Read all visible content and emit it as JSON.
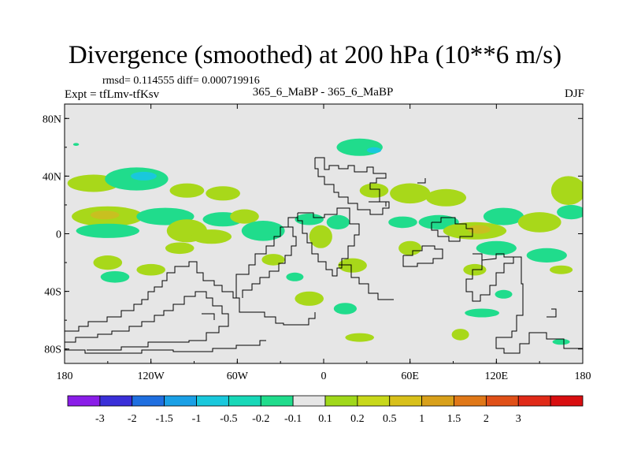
{
  "chart_data": {
    "type": "heatmap",
    "title": "Divergence (smoothed) at 200 hPa (10**6 m/s)",
    "stats": "rmsd= 0.114555 diff= 0.000719916",
    "left_label": "Expt = tfLmv-tfKsv",
    "center_label": "365_6_MaBP - 365_6_MaBP",
    "right_label": "DJF",
    "xlim": [
      -180,
      180
    ],
    "ylim": [
      -90,
      90
    ],
    "x_ticks": [
      {
        "value": -180,
        "label": "180"
      },
      {
        "value": -120,
        "label": "120W"
      },
      {
        "value": -60,
        "label": "60W"
      },
      {
        "value": 0,
        "label": "0"
      },
      {
        "value": 60,
        "label": "60E"
      },
      {
        "value": 120,
        "label": "120E"
      },
      {
        "value": 180,
        "label": "180"
      }
    ],
    "y_ticks": [
      {
        "value": 80,
        "label": "80N"
      },
      {
        "value": 40,
        "label": "40N"
      },
      {
        "value": 0,
        "label": "0"
      },
      {
        "value": -40,
        "label": "40S"
      },
      {
        "value": -80,
        "label": "80S"
      }
    ],
    "colorbar": {
      "colors": [
        "#8a1de8",
        "#3a2fd8",
        "#1f6fe0",
        "#1aa0e6",
        "#19c8dc",
        "#18d8b8",
        "#20dc8c",
        "#e6e6e6",
        "#a0d81a",
        "#c8d81a",
        "#d8c01a",
        "#d8a01a",
        "#e07818",
        "#e05018",
        "#e02a18",
        "#d80e10"
      ],
      "labels": [
        "-3",
        "-2",
        "-1.5",
        "-1",
        "-0.5",
        "-0.2",
        "-0.1",
        "0.1",
        "0.2",
        "0.5",
        "1",
        "1.5",
        "2",
        "3"
      ]
    },
    "blobs": [
      {
        "lon": -160,
        "lat": 35,
        "rx": 18,
        "ry": 6,
        "value": 0.2
      },
      {
        "lon": -130,
        "lat": 38,
        "rx": 22,
        "ry": 8,
        "value": -0.2
      },
      {
        "lon": -125,
        "lat": 40,
        "rx": 9,
        "ry": 3,
        "value": -0.5
      },
      {
        "lon": -95,
        "lat": 30,
        "rx": 12,
        "ry": 5,
        "value": 0.2
      },
      {
        "lon": -70,
        "lat": 28,
        "rx": 12,
        "ry": 5,
        "value": 0.2
      },
      {
        "lon": -150,
        "lat": 12,
        "rx": 25,
        "ry": 7,
        "value": 0.3
      },
      {
        "lon": -152,
        "lat": 13,
        "rx": 10,
        "ry": 3,
        "value": 0.6
      },
      {
        "lon": -150,
        "lat": 2,
        "rx": 22,
        "ry": 5,
        "value": -0.2
      },
      {
        "lon": -110,
        "lat": 12,
        "rx": 20,
        "ry": 6,
        "value": -0.3
      },
      {
        "lon": -95,
        "lat": 2,
        "rx": 14,
        "ry": 8,
        "value": 0.2
      },
      {
        "lon": -70,
        "lat": 10,
        "rx": 14,
        "ry": 5,
        "value": -0.2
      },
      {
        "lon": -55,
        "lat": 12,
        "rx": 10,
        "ry": 5,
        "value": 0.3
      },
      {
        "lon": -42,
        "lat": 2,
        "rx": 15,
        "ry": 7,
        "value": -0.2
      },
      {
        "lon": -78,
        "lat": -2,
        "rx": 14,
        "ry": 5,
        "value": 0.2
      },
      {
        "lon": -150,
        "lat": -20,
        "rx": 10,
        "ry": 5,
        "value": 0.2
      },
      {
        "lon": -145,
        "lat": -30,
        "rx": 10,
        "ry": 4,
        "value": -0.2
      },
      {
        "lon": -120,
        "lat": -25,
        "rx": 10,
        "ry": 4,
        "value": 0.2
      },
      {
        "lon": -100,
        "lat": -10,
        "rx": 10,
        "ry": 4,
        "value": 0.2
      },
      {
        "lon": -35,
        "lat": -18,
        "rx": 8,
        "ry": 4,
        "value": 0.2
      },
      {
        "lon": -20,
        "lat": -30,
        "rx": 6,
        "ry": 3,
        "value": -0.2
      },
      {
        "lon": -10,
        "lat": -45,
        "rx": 10,
        "ry": 5,
        "value": 0.2
      },
      {
        "lon": 15,
        "lat": -52,
        "rx": 8,
        "ry": 4,
        "value": -0.2
      },
      {
        "lon": -10,
        "lat": 10,
        "rx": 10,
        "ry": 4,
        "value": -0.2
      },
      {
        "lon": -2,
        "lat": -2,
        "rx": 8,
        "ry": 8,
        "value": 0.3
      },
      {
        "lon": 10,
        "lat": 8,
        "rx": 8,
        "ry": 5,
        "value": -0.2
      },
      {
        "lon": 25,
        "lat": 60,
        "rx": 16,
        "ry": 6,
        "value": -0.2
      },
      {
        "lon": 35,
        "lat": 58,
        "rx": 5,
        "ry": 2,
        "value": -0.5
      },
      {
        "lon": 35,
        "lat": 30,
        "rx": 10,
        "ry": 5,
        "value": 0.2
      },
      {
        "lon": 60,
        "lat": 28,
        "rx": 14,
        "ry": 7,
        "value": 0.3
      },
      {
        "lon": 85,
        "lat": 25,
        "rx": 14,
        "ry": 6,
        "value": 0.2
      },
      {
        "lon": 55,
        "lat": 8,
        "rx": 10,
        "ry": 4,
        "value": -0.2
      },
      {
        "lon": 80,
        "lat": 8,
        "rx": 14,
        "ry": 5,
        "value": -0.2
      },
      {
        "lon": 105,
        "lat": 2,
        "rx": 22,
        "ry": 6,
        "value": 0.4
      },
      {
        "lon": 108,
        "lat": 3,
        "rx": 8,
        "ry": 3,
        "value": 0.6
      },
      {
        "lon": 125,
        "lat": 12,
        "rx": 14,
        "ry": 6,
        "value": -0.2
      },
      {
        "lon": 150,
        "lat": 8,
        "rx": 15,
        "ry": 7,
        "value": 0.3
      },
      {
        "lon": 170,
        "lat": 30,
        "rx": 12,
        "ry": 10,
        "value": 0.3
      },
      {
        "lon": 172,
        "lat": 15,
        "rx": 10,
        "ry": 5,
        "value": -0.2
      },
      {
        "lon": 155,
        "lat": -15,
        "rx": 14,
        "ry": 5,
        "value": -0.2
      },
      {
        "lon": 120,
        "lat": -10,
        "rx": 14,
        "ry": 5,
        "value": -0.2
      },
      {
        "lon": 60,
        "lat": -10,
        "rx": 8,
        "ry": 5,
        "value": 0.2
      },
      {
        "lon": 20,
        "lat": -22,
        "rx": 10,
        "ry": 5,
        "value": 0.2
      },
      {
        "lon": 105,
        "lat": -25,
        "rx": 8,
        "ry": 4,
        "value": 0.2
      },
      {
        "lon": 165,
        "lat": -25,
        "rx": 8,
        "ry": 3,
        "value": 0.2
      },
      {
        "lon": 125,
        "lat": -42,
        "rx": 6,
        "ry": 3,
        "value": -0.2
      },
      {
        "lon": 110,
        "lat": -55,
        "rx": 12,
        "ry": 3,
        "value": -0.2
      },
      {
        "lon": 95,
        "lat": -70,
        "rx": 6,
        "ry": 4,
        "value": 0.2
      },
      {
        "lon": 25,
        "lat": -72,
        "rx": 10,
        "ry": 3,
        "value": 0.2
      },
      {
        "lon": 165,
        "lat": -75,
        "rx": 6,
        "ry": 2,
        "value": -0.2
      },
      {
        "lon": -172,
        "lat": 62,
        "rx": 2,
        "ry": 1,
        "value": -0.2
      }
    ]
  }
}
